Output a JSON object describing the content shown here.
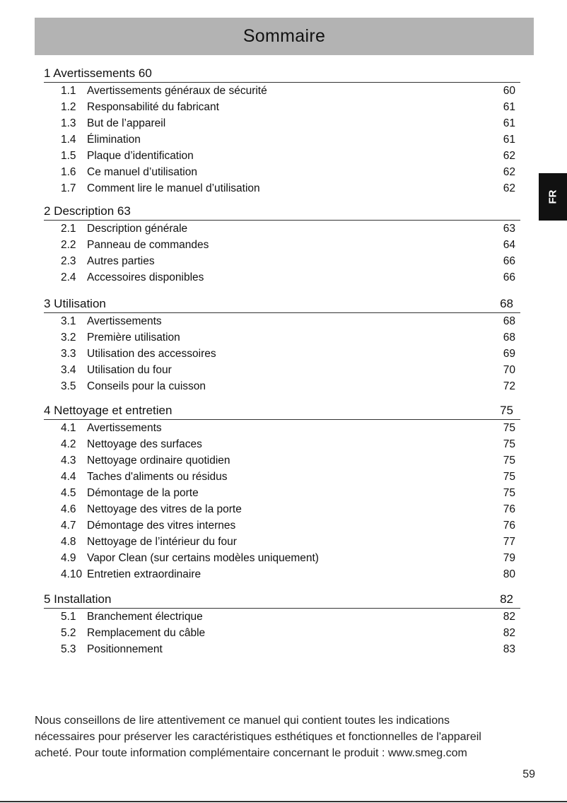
{
  "header": {
    "title": "Sommaire"
  },
  "language_tab": "FR",
  "sections": [
    {
      "title": "1 Avertissements 60",
      "page": "",
      "items": [
        {
          "num": "1.1",
          "label": "Avertissements généraux de sécurité",
          "page": "60"
        },
        {
          "num": "1.2",
          "label": "Responsabilité du fabricant",
          "page": "61"
        },
        {
          "num": "1.3",
          "label": "But de l’appareil",
          "page": "61"
        },
        {
          "num": "1.4",
          "label": "Élimination",
          "page": "61"
        },
        {
          "num": "1.5",
          "label": "Plaque d’identification",
          "page": "62"
        },
        {
          "num": "1.6",
          "label": "Ce manuel d’utilisation",
          "page": "62"
        },
        {
          "num": "1.7",
          "label": "Comment lire le manuel d’utilisation",
          "page": "62"
        }
      ]
    },
    {
      "title": "2 Description 63",
      "page": "",
      "items": [
        {
          "num": "2.1",
          "label": "Description générale",
          "page": "63"
        },
        {
          "num": "2.2",
          "label": "Panneau de commandes",
          "page": "64"
        },
        {
          "num": "2.3",
          "label": "Autres parties",
          "page": "66"
        },
        {
          "num": "2.4",
          "label": "Accessoires disponibles",
          "page": "66"
        }
      ]
    },
    {
      "title": "3 Utilisation",
      "page": "68",
      "items": [
        {
          "num": "3.1",
          "label": "Avertissements",
          "page": "68"
        },
        {
          "num": "3.2",
          "label": "Première utilisation",
          "page": "68"
        },
        {
          "num": "3.3",
          "label": "Utilisation des accessoires",
          "page": "69"
        },
        {
          "num": "3.4",
          "label": "Utilisation du four",
          "page": "70"
        },
        {
          "num": "3.5",
          "label": "Conseils pour la cuisson",
          "page": "72"
        }
      ]
    },
    {
      "title": "4 Nettoyage et entretien",
      "page": "75",
      "items": [
        {
          "num": "4.1",
          "label": "Avertissements",
          "page": "75"
        },
        {
          "num": "4.2",
          "label": "Nettoyage des surfaces",
          "page": "75"
        },
        {
          "num": "4.3",
          "label": "Nettoyage ordinaire quotidien",
          "page": "75"
        },
        {
          "num": "4.4",
          "label": "Taches d'aliments ou résidus",
          "page": "75"
        },
        {
          "num": "4.5",
          "label": "Démontage de la porte",
          "page": "75"
        },
        {
          "num": "4.6",
          "label": "Nettoyage des vitres de la porte",
          "page": "76"
        },
        {
          "num": "4.7",
          "label": "Démontage des vitres internes",
          "page": "76"
        },
        {
          "num": "4.8",
          "label": "Nettoyage de l’intérieur du four",
          "page": "77"
        },
        {
          "num": "4.9",
          "label": "Vapor Clean (sur certains modèles uniquement)",
          "page": "79"
        },
        {
          "num": "4.10",
          "label": "Entretien extraordinaire",
          "page": "80"
        }
      ]
    },
    {
      "title": "5  Installation",
      "page": "82",
      "items": [
        {
          "num": "5.1",
          "label": "Branchement électrique",
          "page": "82"
        },
        {
          "num": "5.2",
          "label": "Remplacement du câble",
          "page": "82"
        },
        {
          "num": "5.3",
          "label": "Positionnement",
          "page": "83"
        }
      ]
    }
  ],
  "footer": {
    "lines": [
      "Nous conseillons de lire attentivement ce manuel qui contient toutes les indications",
      "nécessaires pour préserver les caractéristiques esthétiques et fonctionnelles de l'appareil",
      "acheté. Pour toute information complémentaire concernant le produit : www.smeg.com"
    ],
    "page_number": "59"
  }
}
